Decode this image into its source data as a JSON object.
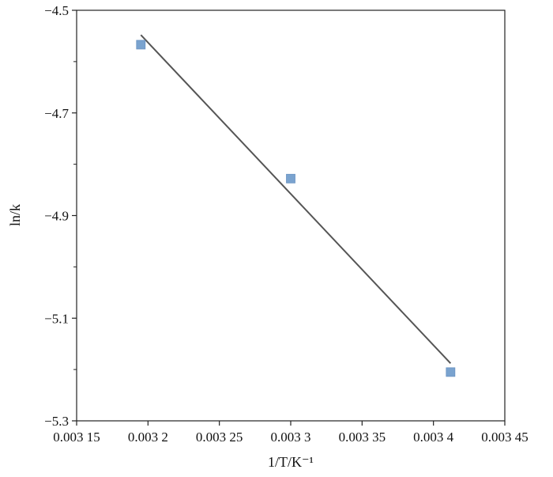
{
  "chart_data": {
    "type": "scatter",
    "title": "",
    "xlabel": "1/T/K⁻¹",
    "ylabel": "ln/k",
    "xlim": [
      0.00315,
      0.00345
    ],
    "ylim": [
      -5.3,
      -4.5
    ],
    "grid": false,
    "x_ticks": [
      0.00315,
      0.0032,
      0.00325,
      0.0033,
      0.00335,
      0.0034,
      0.00345
    ],
    "x_tick_labels": [
      "0.003 15",
      "0.003 2",
      "0.003 25",
      "0.003 3",
      "0.003 35",
      "0.003 4",
      "0.003 45"
    ],
    "y_ticks": [
      -4.5,
      -4.7,
      -4.9,
      -5.1,
      -5.3
    ],
    "y_tick_labels": [
      "−4.5",
      "−4.7",
      "−4.9",
      "−5.1",
      "−5.3"
    ],
    "y_minor_ticks": [
      -4.6,
      -4.8,
      -5.0,
      -5.2
    ],
    "points": [
      {
        "x": 0.003195,
        "y": -4.567
      },
      {
        "x": 0.0033,
        "y": -4.828
      },
      {
        "x": 0.003412,
        "y": -5.205
      }
    ],
    "fit_line": {
      "x": [
        0.003195,
        0.003412
      ],
      "y": [
        -4.548,
        -5.188
      ]
    },
    "colors": {
      "marker": "#7aa3cf",
      "line": "#555555",
      "axis": "#222222"
    }
  }
}
